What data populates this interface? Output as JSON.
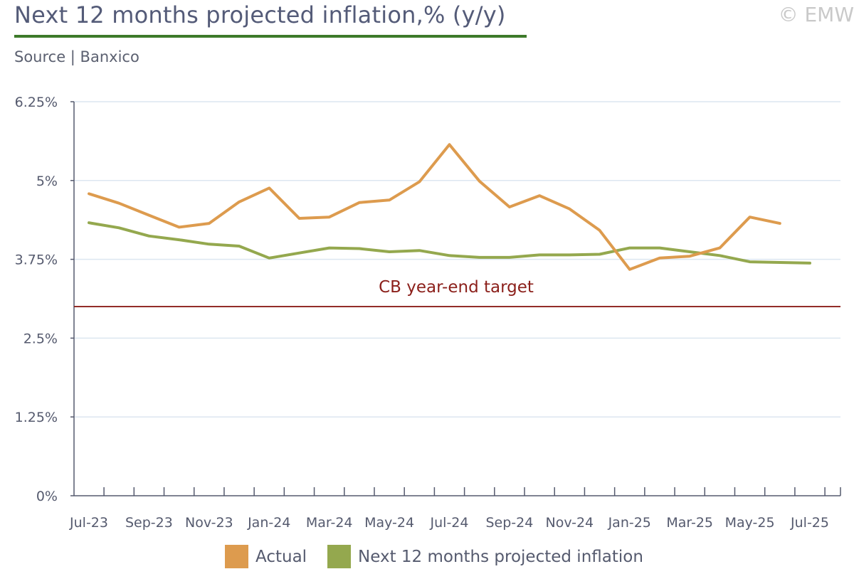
{
  "title": "Next 12 months projected inflation,% (y/y)",
  "copyright": "© EMW",
  "source": "Source | Banxico",
  "colors": {
    "title": "#545b78",
    "title_underline": "#3d7a2a",
    "actual": "#dd9b4e",
    "projected": "#94a84e",
    "target_line": "#8b1f1a",
    "grid": "#dce6f0",
    "axis": "#555a6e"
  },
  "chart_data": {
    "type": "line",
    "x": [
      "Jul-23",
      "Aug-23",
      "Sep-23",
      "Oct-23",
      "Nov-23",
      "Dec-23",
      "Jan-24",
      "Feb-24",
      "Mar-24",
      "Apr-24",
      "May-24",
      "Jun-24",
      "Jul-24",
      "Aug-24",
      "Sep-24",
      "Oct-24",
      "Nov-24",
      "Dec-24",
      "Jan-25",
      "Feb-25",
      "Mar-25",
      "Apr-25",
      "May-25",
      "Jun-25",
      "Jul-25"
    ],
    "x_tick_labels": [
      "Jul-23",
      "Sep-23",
      "Nov-23",
      "Jan-24",
      "Mar-24",
      "May-24",
      "Jul-24",
      "Sep-24",
      "Nov-24",
      "Jan-25",
      "Mar-25",
      "May-25",
      "Jul-25"
    ],
    "y_tick_labels": [
      "0%",
      "1.25%",
      "2.5%",
      "3.75%",
      "5%",
      "6.25%"
    ],
    "y_ticks": [
      0,
      1.25,
      2.5,
      3.75,
      5,
      6.25
    ],
    "ylim": [
      0,
      6.25
    ],
    "grid": true,
    "legend_position": "bottom",
    "series": [
      {
        "name": "Actual",
        "values": [
          4.79,
          4.64,
          4.45,
          4.26,
          4.32,
          4.66,
          4.88,
          4.4,
          4.42,
          4.65,
          4.69,
          4.98,
          5.57,
          4.99,
          4.58,
          4.76,
          4.55,
          4.21,
          3.59,
          3.77,
          3.8,
          3.93,
          4.42,
          4.32,
          null
        ]
      },
      {
        "name": "Next 12 months projected inflation",
        "values": [
          4.33,
          4.25,
          4.12,
          4.06,
          3.99,
          3.96,
          3.77,
          3.85,
          3.93,
          3.92,
          3.87,
          3.89,
          3.81,
          3.78,
          3.78,
          3.82,
          3.82,
          3.83,
          3.93,
          3.93,
          3.87,
          3.81,
          3.71,
          3.7,
          3.69
        ]
      }
    ],
    "reference_line": {
      "value": 3.0,
      "label": "CB year-end target"
    }
  }
}
